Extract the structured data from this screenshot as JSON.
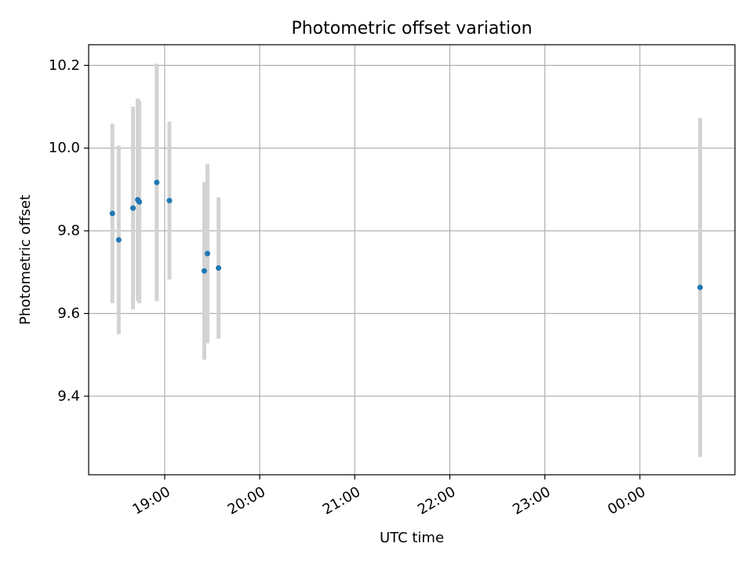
{
  "chart_data": {
    "type": "scatter",
    "title": "Photometric offset variation",
    "xlabel": "UTC time",
    "ylabel": "Photometric offset",
    "grid": true,
    "x_ticks": [
      "19:00",
      "20:00",
      "21:00",
      "22:00",
      "23:00",
      "00:00"
    ],
    "y_ticks": [
      "9.4",
      "9.6",
      "9.8",
      "10.0",
      "10.2"
    ],
    "ylim": [
      9.21,
      10.25
    ],
    "xlim": [
      "18:12",
      "01:00"
    ],
    "colors": {
      "point": "#1f77b4",
      "errorbar": "#d3d3d3",
      "grid": "#b0b0b0"
    },
    "points": [
      {
        "x": "18:27",
        "y": 9.842,
        "yerr": 0.217
      },
      {
        "x": "18:31",
        "y": 9.778,
        "yerr": 0.228
      },
      {
        "x": "18:40",
        "y": 9.855,
        "yerr": 0.245
      },
      {
        "x": "18:43",
        "y": 9.875,
        "yerr": 0.245
      },
      {
        "x": "18:44",
        "y": 9.87,
        "yerr": 0.245
      },
      {
        "x": "18:55",
        "y": 9.917,
        "yerr": 0.287
      },
      {
        "x": "19:03",
        "y": 9.873,
        "yerr": 0.191
      },
      {
        "x": "19:25",
        "y": 9.703,
        "yerr": 0.215
      },
      {
        "x": "19:27",
        "y": 9.745,
        "yerr": 0.217
      },
      {
        "x": "19:34",
        "y": 9.71,
        "yerr": 0.171
      },
      {
        "x": "00:38",
        "y": 9.663,
        "yerr": 0.41
      }
    ]
  }
}
